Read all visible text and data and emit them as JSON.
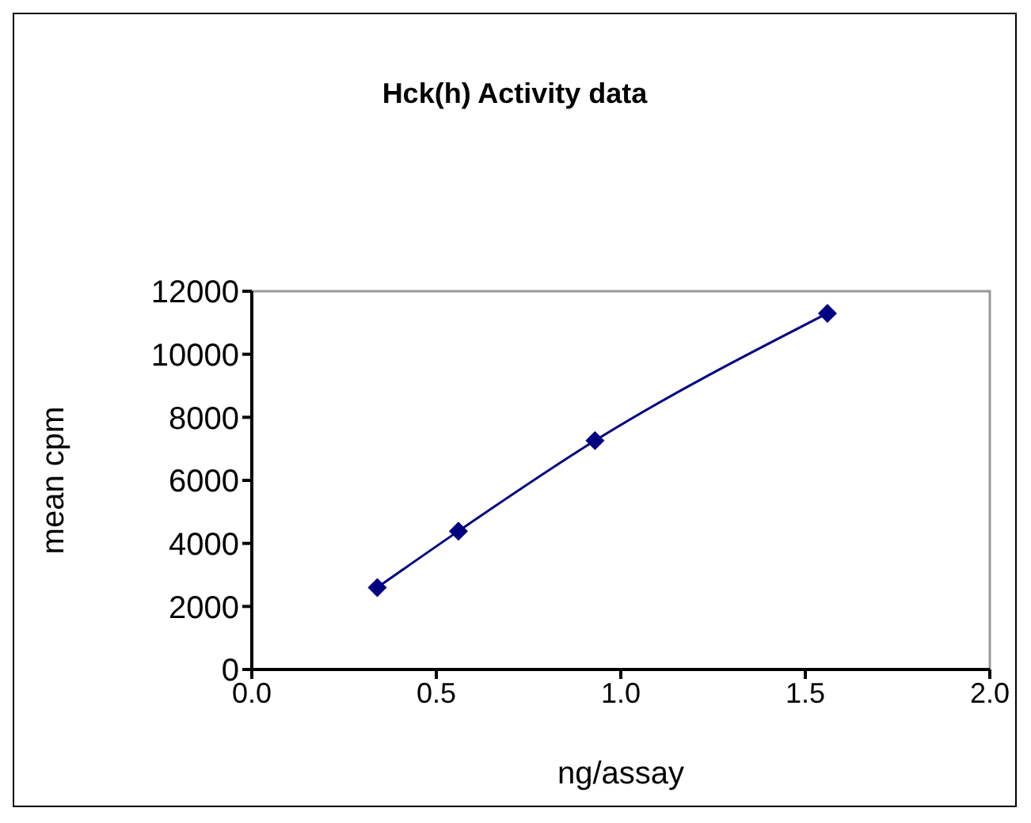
{
  "chart_data": {
    "type": "line",
    "title": "Hck(h) Activity data",
    "xlabel": "ng/assay",
    "ylabel": "mean cpm",
    "series": [
      {
        "color": "#000080",
        "x": [
          0.34,
          0.56,
          0.93,
          1.56
        ],
        "values": [
          2600,
          4390,
          7260,
          11300
        ]
      }
    ],
    "xlim": [
      0,
      2
    ],
    "xticks": [
      {
        "value": 0,
        "label": "0.0"
      },
      {
        "value": 0.5,
        "label": "0.5"
      },
      {
        "value": 1,
        "label": "1.0"
      },
      {
        "value": 1.5,
        "label": "1.5"
      },
      {
        "value": 2,
        "label": "2.0"
      }
    ],
    "ylim": [
      0,
      12000
    ],
    "yticks": [
      0,
      2000,
      4000,
      6000,
      8000,
      10000,
      12000
    ],
    "grid": false,
    "legend": false,
    "marker": "diamond",
    "line_style": "solid"
  }
}
